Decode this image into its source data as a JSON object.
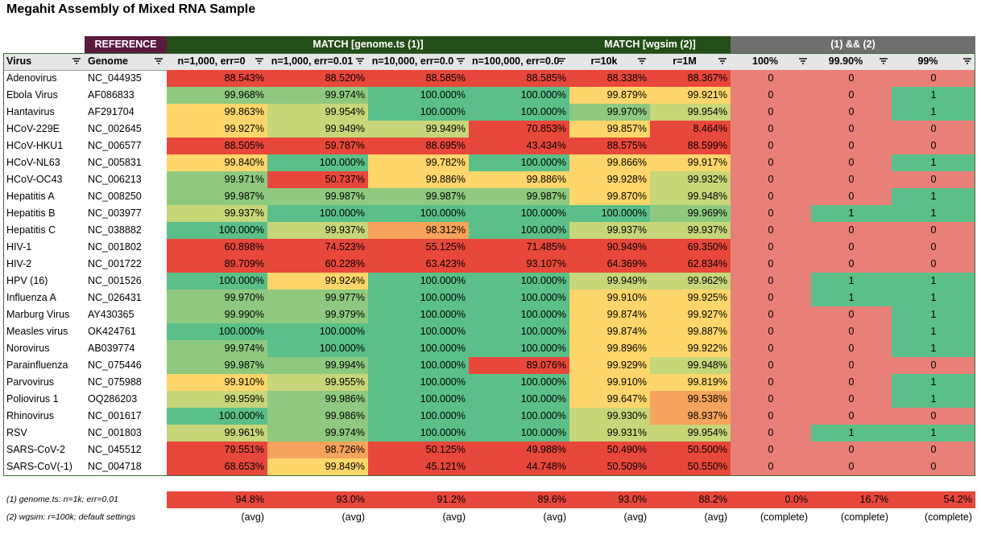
{
  "title": "Megahit Assembly of Mixed RNA Sample",
  "bands": {
    "reference": "REFERENCE",
    "match_genome": "MATCH [genome.ts (1)]",
    "match_wgsim": "MATCH [wgsim (2)]",
    "combined": "(1) && (2)"
  },
  "colors": {
    "reference_band": "#5b1b3e",
    "match_band": "#244e17",
    "combined_band": "#6e6e6e",
    "header_bg": "#e6e6e6",
    "zero_bg": "#e98078",
    "one_bg": "#5abf89",
    "scale": [
      "#e8473b",
      "#f6a35b",
      "#fed66b",
      "#c7d679",
      "#8ec97f",
      "#5abf89"
    ]
  },
  "columns": [
    {
      "label": "Virus",
      "filter_icon": "filter-icon"
    },
    {
      "label": "Genome",
      "filter_icon": "filter-icon"
    },
    {
      "label": "n=1,000, err=0",
      "filter_icon": "filter-icon"
    },
    {
      "label": "n=1,000, err=0.01",
      "filter_icon": "filter-icon"
    },
    {
      "label": "n=10,000, err=0.0",
      "filter_icon": "filter-icon"
    },
    {
      "label": "n=100,000, err=0.0",
      "filter_icon": "filter-icon"
    },
    {
      "label": "r=10k",
      "filter_icon": "filter-icon"
    },
    {
      "label": "r=1M",
      "filter_icon": "filter-icon"
    },
    {
      "label": "100%",
      "filter_icon": "filter-icon"
    },
    {
      "label": "99.90%",
      "filter_icon": "filter-icon"
    },
    {
      "label": "99%",
      "filter_icon": "filter-icon"
    }
  ],
  "rows": [
    {
      "virus": "Adenovirus",
      "genome": "NC_044935",
      "pct": [
        "88.543%",
        "88.520%",
        "88.585%",
        "88.585%",
        "88.338%",
        "88.367%"
      ],
      "complete": [
        "0",
        "0",
        "0"
      ]
    },
    {
      "virus": "Ebola Virus",
      "genome": "AF086833",
      "pct": [
        "99.968%",
        "99.974%",
        "100.000%",
        "100.000%",
        "99.879%",
        "99.921%"
      ],
      "complete": [
        "0",
        "0",
        "1"
      ]
    },
    {
      "virus": "Hantavirus",
      "genome": "AF291704",
      "pct": [
        "99.863%",
        "99.954%",
        "100.000%",
        "100.000%",
        "99.970%",
        "99.954%"
      ],
      "complete": [
        "0",
        "0",
        "1"
      ]
    },
    {
      "virus": "HCoV-229E",
      "genome": "NC_002645",
      "pct": [
        "99.927%",
        "99.949%",
        "99.949%",
        "70.853%",
        "99.857%",
        "8.464%"
      ],
      "complete": [
        "0",
        "0",
        "0"
      ]
    },
    {
      "virus": "HCoV-HKU1",
      "genome": "NC_006577",
      "pct": [
        "88.505%",
        "59.787%",
        "88.695%",
        "43.434%",
        "88.575%",
        "88.599%"
      ],
      "complete": [
        "0",
        "0",
        "0"
      ]
    },
    {
      "virus": "HCoV-NL63",
      "genome": "NC_005831",
      "pct": [
        "99.840%",
        "100.000%",
        "99.782%",
        "100.000%",
        "99.866%",
        "99.917%"
      ],
      "complete": [
        "0",
        "0",
        "1"
      ]
    },
    {
      "virus": "HCoV-OC43",
      "genome": "NC_006213",
      "pct": [
        "99.971%",
        "50.737%",
        "99.886%",
        "99.886%",
        "99.928%",
        "99.932%"
      ],
      "complete": [
        "0",
        "0",
        "0"
      ]
    },
    {
      "virus": "Hepatitis A",
      "genome": "NC_008250",
      "pct": [
        "99.987%",
        "99.987%",
        "99.987%",
        "99.987%",
        "99.870%",
        "99.948%"
      ],
      "complete": [
        "0",
        "0",
        "1"
      ]
    },
    {
      "virus": "Hepatitis B",
      "genome": "NC_003977",
      "pct": [
        "99.937%",
        "100.000%",
        "100.000%",
        "100.000%",
        "100.000%",
        "99.969%"
      ],
      "complete": [
        "0",
        "1",
        "1"
      ]
    },
    {
      "virus": "Hepatitis C",
      "genome": "NC_038882",
      "pct": [
        "100.000%",
        "99.937%",
        "98.312%",
        "100.000%",
        "99.937%",
        "99.937%"
      ],
      "complete": [
        "0",
        "0",
        "0"
      ]
    },
    {
      "virus": "HIV-1",
      "genome": "NC_001802",
      "pct": [
        "60.898%",
        "74.523%",
        "55.125%",
        "71.485%",
        "90.949%",
        "69.350%"
      ],
      "complete": [
        "0",
        "0",
        "0"
      ]
    },
    {
      "virus": "HIV-2",
      "genome": "NC_001722",
      "pct": [
        "89.709%",
        "60.228%",
        "63.423%",
        "93.107%",
        "64.369%",
        "62.834%"
      ],
      "complete": [
        "0",
        "0",
        "0"
      ]
    },
    {
      "virus": "HPV (16)",
      "genome": "NC_001526",
      "pct": [
        "100.000%",
        "99.924%",
        "100.000%",
        "100.000%",
        "99.949%",
        "99.962%"
      ],
      "complete": [
        "0",
        "1",
        "1"
      ]
    },
    {
      "virus": "Influenza A",
      "genome": "NC_026431",
      "pct": [
        "99.970%",
        "99.977%",
        "100.000%",
        "100.000%",
        "99.910%",
        "99.925%"
      ],
      "complete": [
        "0",
        "1",
        "1"
      ]
    },
    {
      "virus": "Marburg Virus",
      "genome": "AY430365",
      "pct": [
        "99.990%",
        "99.979%",
        "100.000%",
        "100.000%",
        "99.874%",
        "99.927%"
      ],
      "complete": [
        "0",
        "0",
        "1"
      ]
    },
    {
      "virus": "Measles virus",
      "genome": "OK424761",
      "pct": [
        "100.000%",
        "100.000%",
        "100.000%",
        "100.000%",
        "99.874%",
        "99.887%"
      ],
      "complete": [
        "0",
        "0",
        "1"
      ]
    },
    {
      "virus": "Norovirus",
      "genome": "AB039774",
      "pct": [
        "99.974%",
        "100.000%",
        "100.000%",
        "100.000%",
        "99.896%",
        "99.922%"
      ],
      "complete": [
        "0",
        "0",
        "1"
      ]
    },
    {
      "virus": "Parainfluenza",
      "genome": "NC_075446",
      "pct": [
        "99.987%",
        "99.994%",
        "100.000%",
        "89.076%",
        "99.929%",
        "99.948%"
      ],
      "complete": [
        "0",
        "0",
        "0"
      ]
    },
    {
      "virus": "Parvovirus",
      "genome": "NC_075988",
      "pct": [
        "99.910%",
        "99.955%",
        "100.000%",
        "100.000%",
        "99.910%",
        "99.819%"
      ],
      "complete": [
        "0",
        "0",
        "1"
      ]
    },
    {
      "virus": "Poliovirus 1",
      "genome": "OQ286203",
      "pct": [
        "99.959%",
        "99.986%",
        "100.000%",
        "100.000%",
        "99.647%",
        "99.538%"
      ],
      "complete": [
        "0",
        "0",
        "1"
      ]
    },
    {
      "virus": "Rhinovirus",
      "genome": "NC_001617",
      "pct": [
        "100.000%",
        "99.986%",
        "100.000%",
        "100.000%",
        "99.930%",
        "98.937%"
      ],
      "complete": [
        "0",
        "0",
        "0"
      ]
    },
    {
      "virus": "RSV",
      "genome": "NC_001803",
      "pct": [
        "99.961%",
        "99.974%",
        "100.000%",
        "100.000%",
        "99.931%",
        "99.954%"
      ],
      "complete": [
        "0",
        "1",
        "1"
      ]
    },
    {
      "virus": "SARS-CoV-2",
      "genome": "NC_045512",
      "pct": [
        "79.551%",
        "98.726%",
        "50.125%",
        "49.988%",
        "50.490%",
        "50.500%"
      ],
      "complete": [
        "0",
        "0",
        "0"
      ]
    },
    {
      "virus": "SARS-CoV(-1)",
      "genome": "NC_004718",
      "pct": [
        "68.653%",
        "99.849%",
        "45.121%",
        "44.748%",
        "50.509%",
        "50.550%"
      ],
      "complete": [
        "0",
        "0",
        "0"
      ]
    }
  ],
  "summary": {
    "note1": "(1) genome.ts: n=1k; err=0.01",
    "note2": "(2) wgsim: r=100k; default settings",
    "values": [
      "94.8%",
      "93.0%",
      "91.2%",
      "89.6%",
      "93.0%",
      "88.2%",
      "0.0%",
      "16.7%",
      "54.2%"
    ],
    "labels": [
      "(avg)",
      "(avg)",
      "(avg)",
      "(avg)",
      "(avg)",
      "(avg)",
      "(complete)",
      "(complete)",
      "(complete)"
    ]
  }
}
